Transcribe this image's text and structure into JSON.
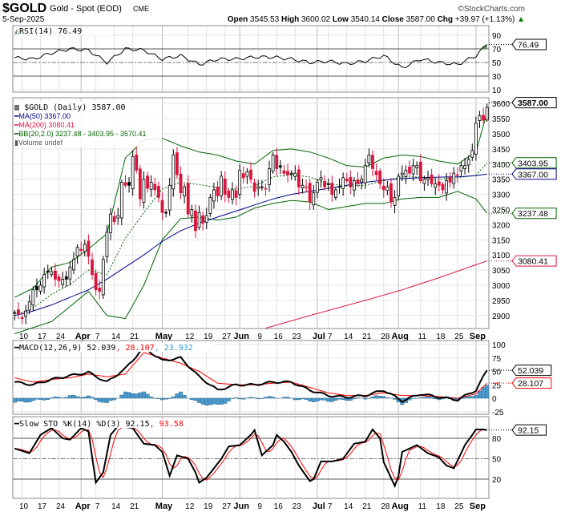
{
  "header": {
    "symbol": "$GOLD",
    "name": "Gold - Spot (EOD)",
    "exchange": "CME",
    "copyright": "©StockCharts.com",
    "date": "5-Sep-2025",
    "open_label": "Open",
    "open": "3545.53",
    "high_label": "High",
    "high": "3600.02",
    "low_label": "Low",
    "low": "3540.14",
    "close_label": "Close",
    "close": "3587.00",
    "chg_label": "Chg",
    "chg": "+39.97 (+1.13%)",
    "chg_icon": "triangle-up-icon"
  },
  "colors": {
    "ma50": "#00008b",
    "ma200": "#dc143c",
    "bb": "#006400",
    "up": "#000000",
    "down": "#dc143c",
    "hist": "#4a9acb",
    "rsi_fill": "#5d8a5d",
    "macd_signal": "#ff0000",
    "macd_hist_text": "#3399cc"
  },
  "legends": {
    "rsi": "RSI(14) 76.49",
    "price": "$GOLD (Daily) 3587.00",
    "ma50": "MA(50) 3367.00",
    "ma200": "MA(200) 3080.41",
    "bb": "BB(20,2.0) 3237.48 - 3403.95 - 3570.41",
    "volume": "Volume undef",
    "macd_name": "MACD(12,26,9) 52.039",
    "macd_signal": ", 28.107",
    "macd_hist": ", 23.932",
    "sto_name": "Slow STO %K(14) %D(3) 92.15",
    "sto_d": ", 93.58"
  },
  "tags": {
    "rsi": "76.49",
    "close": "3587.00",
    "bb_mid": "3403.95",
    "ma50": "3367.00",
    "bb_low": "3237.48",
    "ma200": "3080.41",
    "macd": "52.039",
    "signal": "28.107",
    "sto": "92.15"
  },
  "chart_data": {
    "type": "candlestick",
    "title": "$GOLD (Daily)",
    "x_labels": [
      {
        "label": "10",
        "index": 2
      },
      {
        "label": "17",
        "index": 7
      },
      {
        "label": "24",
        "index": 12
      },
      {
        "label": "Apr",
        "index": 18,
        "month": true
      },
      {
        "label": "7",
        "index": 22
      },
      {
        "label": "14",
        "index": 27
      },
      {
        "label": "21",
        "index": 32
      },
      {
        "label": "May",
        "index": 40,
        "month": true
      },
      {
        "label": "12",
        "index": 47
      },
      {
        "label": "19",
        "index": 52
      },
      {
        "label": "27",
        "index": 57
      },
      {
        "label": "Jun",
        "index": 61,
        "month": true
      },
      {
        "label": "9",
        "index": 66
      },
      {
        "label": "16",
        "index": 71
      },
      {
        "label": "23",
        "index": 76
      },
      {
        "label": "Jul",
        "index": 82,
        "month": true
      },
      {
        "label": "7",
        "index": 85
      },
      {
        "label": "14",
        "index": 90
      },
      {
        "label": "21",
        "index": 95
      },
      {
        "label": "28",
        "index": 100
      },
      {
        "label": "Aug",
        "index": 104,
        "month": true
      },
      {
        "label": "11",
        "index": 110
      },
      {
        "label": "18",
        "index": 115
      },
      {
        "label": "25",
        "index": 120
      },
      {
        "label": "Sep",
        "index": 125,
        "month": true
      }
    ],
    "price_axis": {
      "ticks": [
        2900,
        2950,
        3000,
        3050,
        3100,
        3150,
        3200,
        3250,
        3300,
        3350,
        3400,
        3450,
        3500,
        3550,
        3600
      ]
    },
    "closes": [
      2910,
      2905,
      2890,
      2915,
      2945,
      2985,
      2985,
      3000,
      3035,
      3045,
      3045,
      3020,
      3015,
      3020,
      3020,
      3060,
      3085,
      3125,
      3115,
      3135,
      3095,
      3035,
      2985,
      2980,
      3085,
      3175,
      3235,
      3210,
      3230,
      3340,
      3330,
      3330,
      3425,
      3380,
      3285,
      3350,
      3320,
      3340,
      3315,
      3290,
      3240,
      3240,
      3330,
      3430,
      3365,
      3305,
      3325,
      3235,
      3250,
      3180,
      3240,
      3205,
      3230,
      3290,
      3315,
      3295,
      3360,
      3300,
      3290,
      3315,
      3290,
      3380,
      3355,
      3375,
      3350,
      3310,
      3325,
      3325,
      3320,
      3385,
      3430,
      3385,
      3390,
      3370,
      3365,
      3370,
      3370,
      3325,
      3330,
      3325,
      3275,
      3305,
      3340,
      3355,
      3325,
      3335,
      3300,
      3315,
      3325,
      3355,
      3345,
      3325,
      3345,
      3335,
      3350,
      3395,
      3430,
      3385,
      3365,
      3335,
      3315,
      3325,
      3275,
      3290,
      3360,
      3370,
      3380,
      3370,
      3395,
      3395,
      3345,
      3350,
      3355,
      3335,
      3335,
      3330,
      3315,
      3345,
      3340,
      3370,
      3365,
      3395,
      3395,
      3415,
      3445,
      3535,
      3560,
      3545,
      3587
    ],
    "last_open": 3545.53,
    "last_high": 3600.02,
    "last_low": 3540.14,
    "sample_step": 5,
    "ma50": [
      2900,
      2915,
      2935,
      2960,
      2985,
      3020,
      3060,
      3100,
      3145,
      3180,
      3205,
      3225,
      3245,
      3265,
      3285,
      3300,
      3310,
      3320,
      3330,
      3340,
      3347,
      3352,
      3355,
      3357,
      3358,
      3362,
      3367
    ],
    "ma200_points": [
      [
        68,
        2858
      ],
      [
        80,
        2900
      ],
      [
        95,
        2950
      ],
      [
        105,
        2985
      ],
      [
        115,
        3025
      ],
      [
        128,
        3080.41
      ]
    ],
    "bb_upper": [
      2960,
      2990,
      3060,
      3075,
      3120,
      3170,
      3420,
      3480,
      3485,
      3460,
      3440,
      3430,
      3410,
      3400,
      3445,
      3450,
      3440,
      3420,
      3395,
      3390,
      3420,
      3430,
      3425,
      3410,
      3400,
      3440,
      3570.41
    ],
    "bb_lower": [
      2840,
      2860,
      2880,
      2930,
      2980,
      2900,
      2890,
      3000,
      3150,
      3220,
      3225,
      3215,
      3225,
      3255,
      3270,
      3280,
      3275,
      3250,
      3260,
      3270,
      3270,
      3285,
      3290,
      3290,
      3310,
      3285,
      3237.48
    ],
    "rsi": {
      "ticks": [
        10,
        30,
        50,
        70,
        90
      ],
      "values": [
        57,
        55,
        64,
        70,
        68,
        50,
        70,
        68,
        55,
        60,
        47,
        55,
        55,
        58,
        58,
        55,
        50,
        52,
        48,
        52,
        60,
        42,
        55,
        50,
        47,
        60,
        76.49
      ]
    },
    "macd": {
      "ticks": [
        -25,
        0,
        25,
        50,
        75,
        100
      ],
      "macd": [
        30,
        25,
        35,
        42,
        48,
        30,
        55,
        95,
        70,
        75,
        40,
        15,
        25,
        25,
        30,
        30,
        15,
        5,
        2,
        5,
        15,
        -5,
        8,
        2,
        -3,
        15,
        52.039
      ],
      "signal": [
        38,
        30,
        35,
        38,
        45,
        40,
        45,
        85,
        75,
        65,
        50,
        28,
        25,
        25,
        28,
        30,
        20,
        10,
        5,
        5,
        10,
        5,
        5,
        3,
        0,
        8,
        28.107
      ]
    },
    "sto": {
      "ticks": [
        20,
        50,
        80
      ],
      "k_points": [
        [
          0,
          65
        ],
        [
          4,
          58
        ],
        [
          7,
          85
        ],
        [
          10,
          95
        ],
        [
          13,
          80
        ],
        [
          15,
          78
        ],
        [
          18,
          95
        ],
        [
          20,
          90
        ],
        [
          22,
          15
        ],
        [
          24,
          30
        ],
        [
          26,
          85
        ],
        [
          28,
          98
        ],
        [
          32,
          95
        ],
        [
          35,
          72
        ],
        [
          38,
          70
        ],
        [
          40,
          60
        ],
        [
          42,
          25
        ],
        [
          44,
          55
        ],
        [
          47,
          50
        ],
        [
          49,
          30
        ],
        [
          50,
          15
        ],
        [
          52,
          22
        ],
        [
          56,
          50
        ],
        [
          58,
          68
        ],
        [
          61,
          70
        ],
        [
          64,
          85
        ],
        [
          65,
          92
        ],
        [
          67,
          55
        ],
        [
          70,
          70
        ],
        [
          71,
          85
        ],
        [
          73,
          75
        ],
        [
          75,
          60
        ],
        [
          77,
          40
        ],
        [
          80,
          17
        ],
        [
          81,
          20
        ],
        [
          83,
          46
        ],
        [
          86,
          46
        ],
        [
          89,
          50
        ],
        [
          92,
          72
        ],
        [
          95,
          75
        ],
        [
          97,
          93
        ],
        [
          99,
          80
        ],
        [
          100,
          45
        ],
        [
          103,
          10
        ],
        [
          104,
          25
        ],
        [
          105,
          60
        ],
        [
          109,
          70
        ],
        [
          112,
          58
        ],
        [
          115,
          52
        ],
        [
          117,
          40
        ],
        [
          119,
          36
        ],
        [
          120,
          47
        ],
        [
          122,
          70
        ],
        [
          124,
          85
        ],
        [
          125,
          93
        ],
        [
          127,
          93
        ],
        [
          128,
          92.15
        ]
      ]
    }
  }
}
